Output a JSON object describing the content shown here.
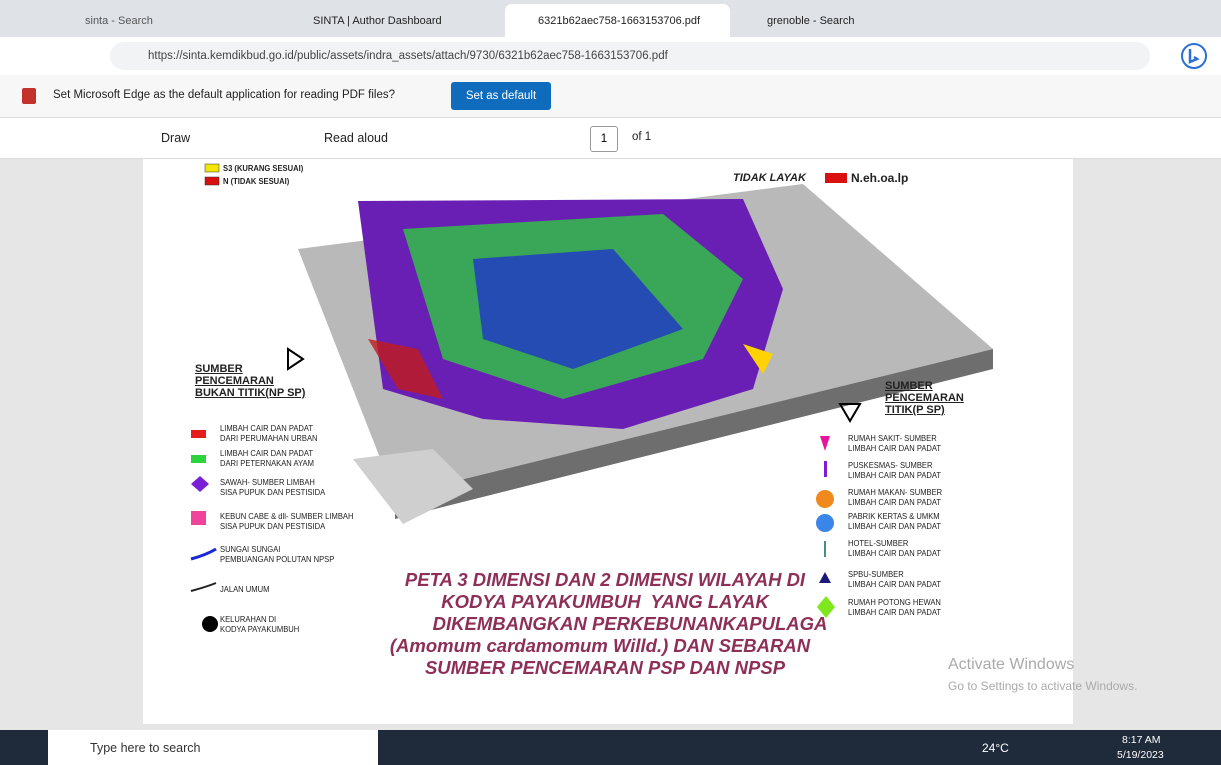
{
  "browser": {
    "tabs": [
      "sinta - Search",
      "SINTA | Author Dashboard",
      "6321b62aec758-1663153706.pdf",
      "grenoble - Search"
    ],
    "url": "https://sinta.kemdikbud.go.id/public/assets/indra_assets/attach/9730/6321b62aec758-1663153706.pdf",
    "notification": {
      "message": "Set Microsoft Edge as the default application for reading PDF files?",
      "button": "Set as default"
    },
    "pdf_toolbar": {
      "draw": "Draw",
      "read_aloud": "Read aloud",
      "page": "1",
      "page_count": "of 1"
    }
  },
  "map": {
    "top_legend": [
      "S3 (KURANG SESUAI)",
      "N (TIDAK SESUAI)",
      "TIDAK LAYAK",
      "N.eh.oa.lp"
    ],
    "left_heading": [
      "SUMBER",
      "PENCEMARAN",
      "BUKAN TITIK(NP SP)"
    ],
    "left_items": [
      [
        "LIMBAH CAIR DAN PADAT",
        "DARI PERUMAHAN URBAN"
      ],
      [
        "LIMBAH CAIR DAN PADAT",
        "DARI PETERNAKAN AYAM"
      ],
      [
        "SAWAH- SUMBER LIMBAH",
        "SISA PUPUK DAN PESTISIDA"
      ],
      [
        "KEBUN CABE & dll- SUMBER LIMBAH",
        "SISA PUPUK DAN PESTISIDA"
      ],
      [
        "SUNGAI SUNGAI",
        "PEMBUANGAN POLUTAN NPSP"
      ],
      [
        "JALAN UMUM"
      ],
      [
        "KELURAHAN DI",
        "KODYA PAYAKUMBUH"
      ]
    ],
    "right_heading": [
      "SUMBER",
      "PENCEMARAN",
      "TITIK(P SP)"
    ],
    "right_items": [
      [
        "RUMAH SAKIT- SUMBER",
        "LIMBAH CAIR DAN PADAT"
      ],
      [
        "PUSKESMAS- SUMBER",
        "LIMBAH CAIR DAN PADAT"
      ],
      [
        "RUMAH MAKAN- SUMBER",
        "LIMBAH CAIR DAN PADAT"
      ],
      [
        "PABRIK KERTAS & UMKM",
        "LIMBAH CAIR DAN PADAT"
      ],
      [
        "HOTEL-SUMBER",
        "LIMBAH CAIR DAN PADAT"
      ],
      [
        "SPBU-SUMBER",
        "LIMBAH CAIR DAN PADAT"
      ],
      [
        "RUMAH POTONG HEWAN",
        "LIMBAH CAIR DAN PADAT"
      ]
    ],
    "title": [
      "PETA 3 DIMENSI DAN 2 DIMENSI WILAYAH DI",
      "KODYA PAYAKUMBUH  YANG LAYAK",
      "DIKEMBANGKAN PERKEBUNANKAPULAGA",
      "(Amomum cardamomum Willd.) DAN SEBARAN",
      "SUMBER PENCEMARAN PSP DAN NPSP"
    ]
  },
  "watermark": [
    "Activate Windows",
    "Go to Settings to activate Windows."
  ],
  "taskbar": {
    "search": "Type here to search",
    "weather": "24°C",
    "time": "8:17 AM",
    "date": "5/19/2023"
  }
}
